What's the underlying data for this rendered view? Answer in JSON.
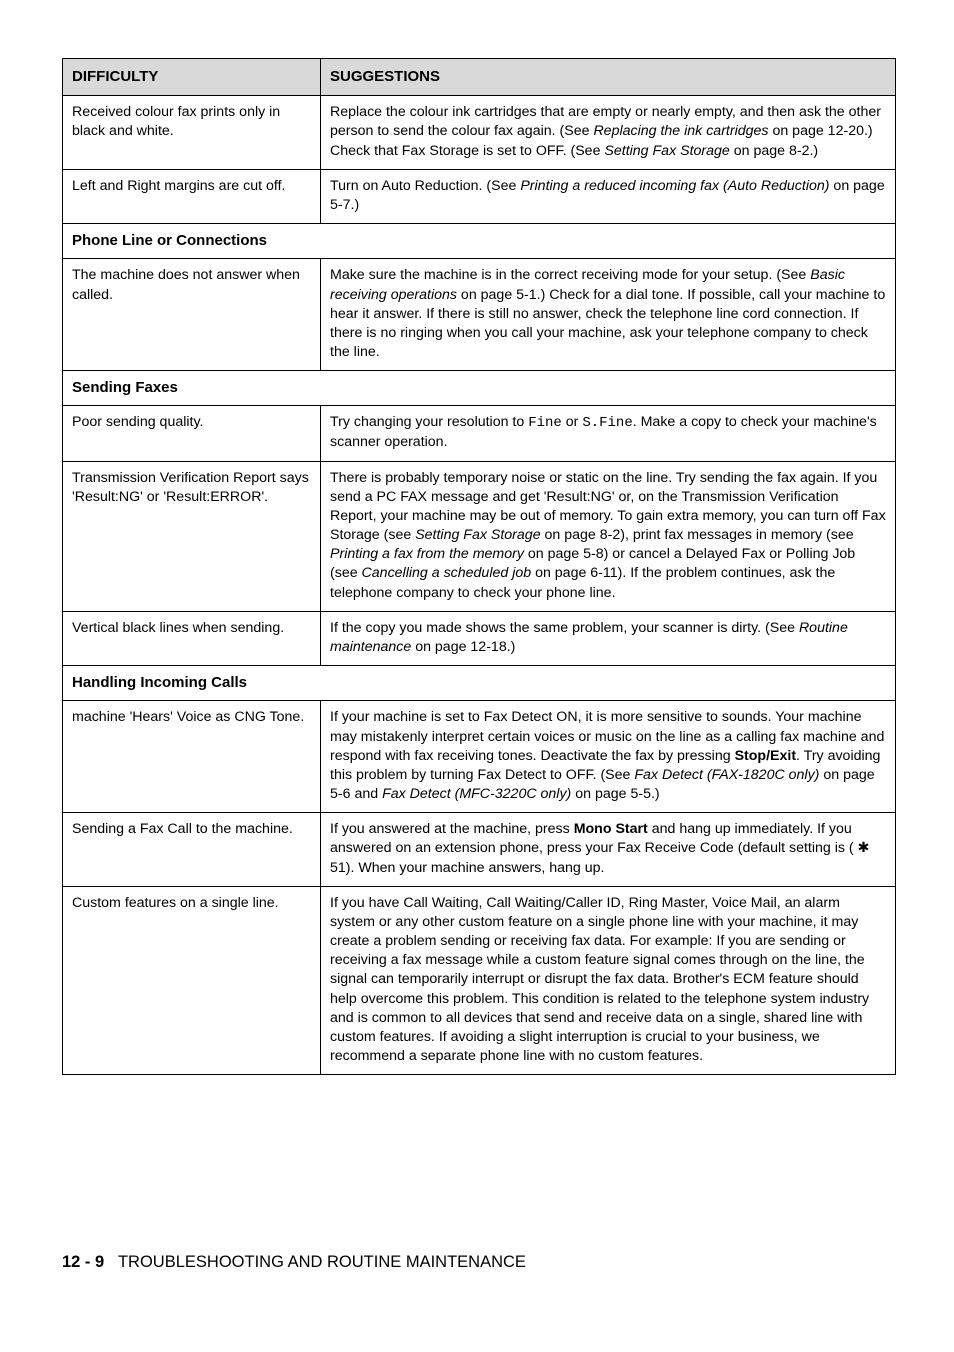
{
  "header": {
    "difficulty": "DIFFICULTY",
    "suggestions": "SUGGESTIONS"
  },
  "rows": [
    {
      "d": "Received colour fax prints only in black and white.",
      "s_parts": [
        {
          "t": "Replace the colour ink cartridges that are empty or nearly empty, and then ask the other person to send the colour fax again. (See "
        },
        {
          "t": "Replacing the ink cartridges",
          "ital": true
        },
        {
          "t": " on page 12-20.) Check that Fax Storage is set to OFF. (See "
        },
        {
          "t": "Setting Fax Storage",
          "ital": true
        },
        {
          "t": " on page 8-2.)"
        }
      ]
    },
    {
      "d": "Left and Right margins are cut off.",
      "s_parts": [
        {
          "t": "Turn on Auto Reduction. (See "
        },
        {
          "t": "Printing a reduced incoming fax (Auto Reduction)",
          "ital": true
        },
        {
          "t": " on page 5-7.)"
        }
      ]
    },
    {
      "section": "Phone Line or Connections"
    },
    {
      "d": "The machine does not answer when called.",
      "s_parts": [
        {
          "t": "Make sure the machine is in the correct receiving mode for your setup. (See "
        },
        {
          "t": "Basic receiving operations",
          "ital": true
        },
        {
          "t": " on page 5-1.) Check for a dial tone. If possible, call your machine to hear it answer. If there is still no answer, check the telephone line cord connection. If there is no ringing when you call your machine, ask your telephone company to check the line."
        }
      ]
    },
    {
      "section": "Sending Faxes"
    },
    {
      "d": "Poor sending quality.",
      "s_parts": [
        {
          "t": "Try changing your resolution to "
        },
        {
          "t": "Fine",
          "mono": true
        },
        {
          "t": " or "
        },
        {
          "t": "S.Fine",
          "mono": true
        },
        {
          "t": ". Make a copy to check your machine's scanner operation."
        }
      ]
    },
    {
      "d": "Transmission Verification Report says 'Result:NG' or 'Result:ERROR'.",
      "s_parts": [
        {
          "t": "There is probably temporary noise or static on the line. Try sending the fax again. If you send a PC FAX message and get 'Result:NG' or, on the Transmission Verification Report, your machine may be out of memory. To gain extra memory, you can turn off Fax Storage (see "
        },
        {
          "t": "Setting Fax Storage",
          "ital": true
        },
        {
          "t": " on page 8-2), print fax messages in memory (see "
        },
        {
          "t": "Printing a fax from the memory",
          "ital": true
        },
        {
          "t": " on page 5-8) or cancel a Delayed Fax or Polling Job (see "
        },
        {
          "t": "Cancelling a scheduled job",
          "ital": true
        },
        {
          "t": " on page 6-11). If the problem continues, ask the telephone company to check your phone line."
        }
      ]
    },
    {
      "d": "Vertical black lines when sending.",
      "s_parts": [
        {
          "t": "If the copy you made shows the same problem, your scanner is dirty. (See "
        },
        {
          "t": "Routine maintenance",
          "ital": true
        },
        {
          "t": " on page 12-18.)"
        }
      ]
    },
    {
      "section": "Handling Incoming Calls"
    },
    {
      "d": "machine 'Hears' Voice as CNG Tone.",
      "s_parts": [
        {
          "t": "If your machine is set to Fax Detect ON, it is more sensitive to sounds. Your machine may mistakenly interpret certain voices or music on the line as a calling fax machine and respond with fax receiving tones. Deactivate the fax by pressing "
        },
        {
          "t": "Stop/Exit",
          "bold": true
        },
        {
          "t": ". Try avoiding this problem by turning Fax Detect to OFF. (See "
        },
        {
          "t": "Fax Detect (FAX-1820C only)",
          "ital": true
        },
        {
          "t": " on page 5-6 and "
        },
        {
          "t": "Fax Detect (MFC-3220C only)",
          "ital": true
        },
        {
          "t": " on page 5-5.)"
        }
      ]
    },
    {
      "d": "Sending a Fax Call to the machine.",
      "s_parts": [
        {
          "t": "If you answered at the machine, press "
        },
        {
          "t": "Mono Start",
          "bold": true
        },
        {
          "t": " and hang up immediately. If you answered on an extension phone, press your Fax Receive Code (default setting is ( "
        },
        {
          "t": "✱",
          "star": true
        },
        {
          "t": " 51). When your machine answers, hang up."
        }
      ]
    },
    {
      "d": "Custom features on a single line.",
      "s_parts": [
        {
          "t": "If you have Call Waiting, Call Waiting/Caller ID, Ring Master, Voice Mail, an alarm system or any other custom feature on a single phone line with your machine, it may create a problem sending or receiving fax data. For example: If you are sending or receiving a fax message while a custom feature signal comes through on the line, the signal can temporarily interrupt or disrupt the fax data. Brother's ECM feature should help overcome this problem. This condition is related to the telephone system industry and is common to all devices that send and receive data on a single, shared line with custom features. If avoiding a slight interruption is crucial to your business, we recommend a separate phone line with no custom features."
        }
      ]
    }
  ],
  "footer": {
    "page": "12 - 9",
    "title": "TROUBLESHOOTING AND ROUTINE MAINTENANCE"
  }
}
